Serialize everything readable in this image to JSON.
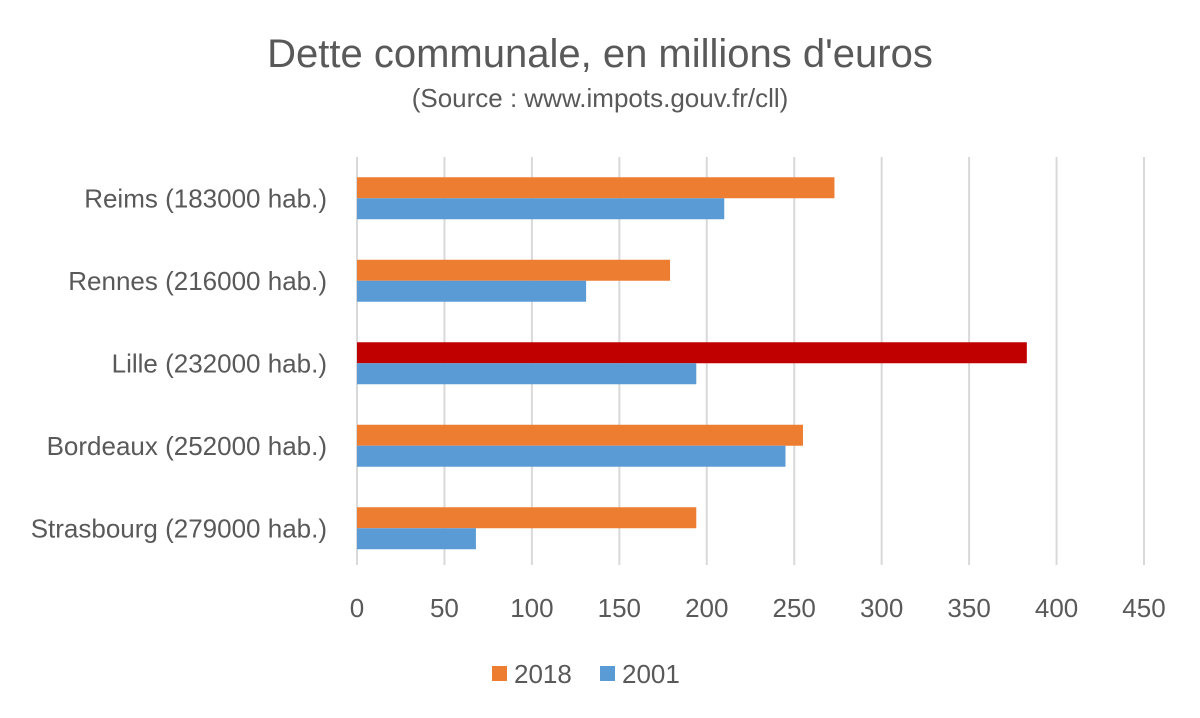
{
  "chart_data": {
    "type": "bar",
    "orientation": "horizontal",
    "title": "Dette communale, en millions d'euros",
    "subtitle": "(Source : www.impots.gouv.fr/cll)",
    "categories": [
      "Reims (183000 hab.)",
      "Rennes (216000 hab.)",
      "Lille (232000 hab.)",
      "Bordeaux (252000 hab.)",
      "Strasbourg (279000 hab.)"
    ],
    "series": [
      {
        "name": "2018",
        "color": "#ED7D31",
        "values": [
          273,
          179,
          383,
          255,
          194
        ],
        "highlight": {
          "category_index": 2,
          "color": "#C00000"
        }
      },
      {
        "name": "2001",
        "color": "#5B9BD5",
        "values": [
          210,
          131,
          194,
          245,
          68
        ]
      }
    ],
    "xlim": [
      0,
      450
    ],
    "xticks": [
      0,
      50,
      100,
      150,
      200,
      250,
      300,
      350,
      400,
      450
    ],
    "grid": true,
    "legend_position": "bottom",
    "xlabel": "",
    "ylabel": ""
  }
}
